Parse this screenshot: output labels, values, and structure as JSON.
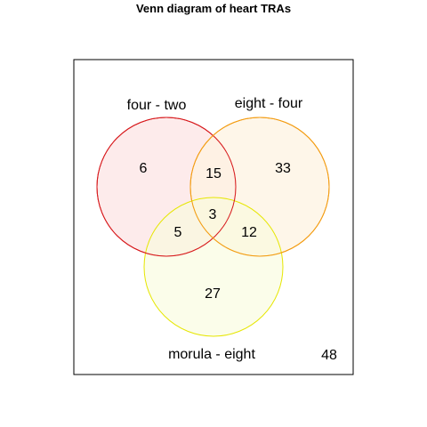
{
  "title": "Venn diagram of heart TRAs",
  "sets": {
    "a": {
      "label": "four - two",
      "stroke": "#d7191c",
      "fill": "#fde8e8"
    },
    "b": {
      "label": "eight - four",
      "stroke": "#f39c12",
      "fill": "#fef3e2"
    },
    "c": {
      "label": "morula - eight",
      "stroke": "#e6e600",
      "fill": "#f8fbdc"
    }
  },
  "counts": {
    "a_only": "6",
    "b_only": "33",
    "c_only": "27",
    "ab": "15",
    "ac": "5",
    "bc": "12",
    "abc": "3",
    "outside": "48"
  }
}
